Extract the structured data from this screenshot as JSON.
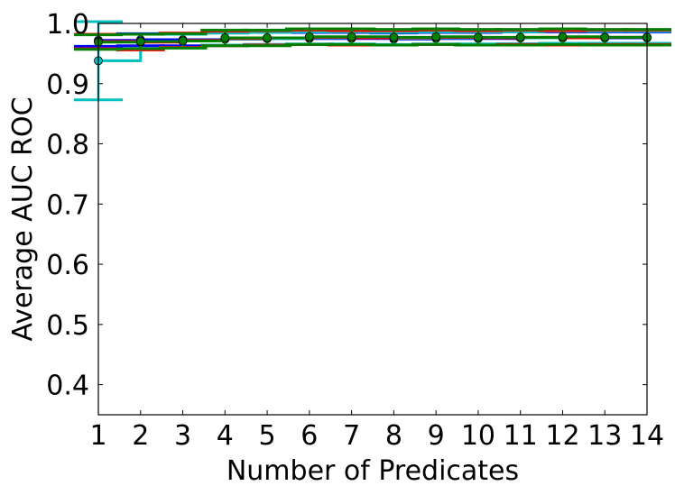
{
  "chart_data": {
    "type": "line",
    "title": "",
    "xlabel": "Number of Predicates",
    "ylabel": "Average AUC ROC",
    "xlim": [
      1,
      14
    ],
    "ylim": [
      0.35,
      1.0
    ],
    "x_ticks": [
      1,
      2,
      3,
      4,
      5,
      6,
      7,
      8,
      9,
      10,
      11,
      12,
      13,
      14
    ],
    "x_tick_labels": [
      "1",
      "2",
      "3",
      "4",
      "5",
      "6",
      "7",
      "8",
      "9",
      "10",
      "11",
      "12",
      "13",
      "14"
    ],
    "y_ticks": [
      0.4,
      0.5,
      0.6,
      0.7,
      0.8,
      0.9,
      1.0
    ],
    "y_tick_labels": [
      "0.4",
      "0.5",
      "0.6",
      "0.7",
      "0.8",
      "0.9",
      "1.0"
    ],
    "grid": false,
    "legend": "none",
    "x": [
      1,
      2,
      3,
      4,
      5,
      6,
      7,
      8,
      9,
      10,
      11,
      12,
      13,
      14
    ],
    "series": [
      {
        "color": "#0000ff",
        "values": [
          0.972,
          0.973,
          0.973,
          0.974,
          0.975,
          0.975,
          0.975,
          0.974,
          0.975,
          0.975,
          0.976,
          0.976,
          0.976,
          0.976
        ],
        "error": [
          0.01,
          0.01,
          0.01,
          0.01,
          0.01,
          0.01,
          0.01,
          0.01,
          0.01,
          0.01,
          0.01,
          0.01,
          0.01,
          0.01
        ]
      },
      {
        "color": "#00bfbf",
        "values": [
          0.938,
          0.97,
          0.971,
          0.974,
          0.975,
          0.976,
          0.976,
          0.975,
          0.976,
          0.976,
          0.976,
          0.977,
          0.977,
          0.977
        ],
        "error": [
          0.065,
          0.012,
          0.011,
          0.01,
          0.01,
          0.01,
          0.01,
          0.01,
          0.01,
          0.01,
          0.01,
          0.01,
          0.01,
          0.01
        ]
      },
      {
        "color": "#ff0000",
        "values": [
          0.97,
          0.969,
          0.972,
          0.975,
          0.976,
          0.977,
          0.976,
          0.976,
          0.977,
          0.976,
          0.977,
          0.976,
          0.977,
          0.977
        ],
        "error": [
          0.012,
          0.013,
          0.012,
          0.012,
          0.012,
          0.012,
          0.012,
          0.012,
          0.012,
          0.012,
          0.012,
          0.012,
          0.012,
          0.012
        ]
      },
      {
        "color": "#008000",
        "values": [
          0.969,
          0.97,
          0.971,
          0.976,
          0.976,
          0.978,
          0.978,
          0.977,
          0.978,
          0.977,
          0.977,
          0.978,
          0.977,
          0.977
        ],
        "error": [
          0.012,
          0.012,
          0.012,
          0.013,
          0.013,
          0.013,
          0.013,
          0.013,
          0.013,
          0.013,
          0.013,
          0.013,
          0.013,
          0.013
        ]
      }
    ]
  }
}
